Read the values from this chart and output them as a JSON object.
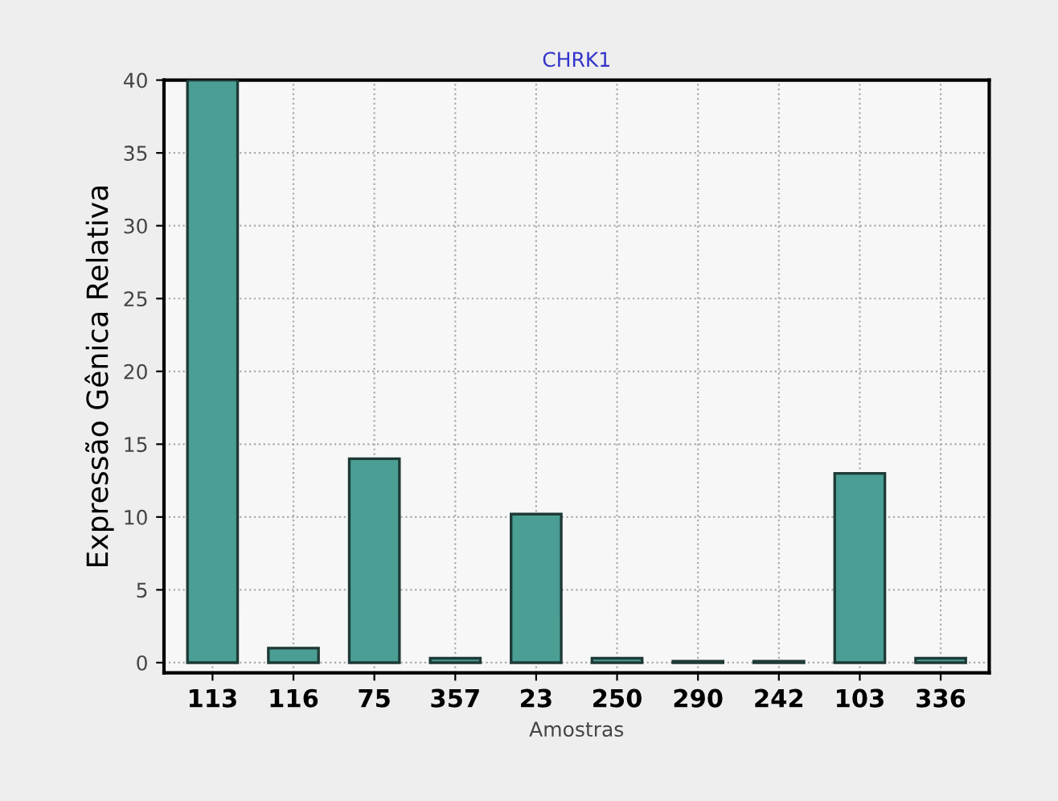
{
  "chart_data": {
    "type": "bar",
    "title": "CHRK1",
    "xlabel": "Amostras",
    "ylabel": "Expressão Gênica Relativa",
    "categories": [
      "113",
      "116",
      "75",
      "357",
      "23",
      "250",
      "290",
      "242",
      "103",
      "336"
    ],
    "values": [
      40,
      1.0,
      14,
      0.3,
      10.2,
      0.3,
      0.1,
      0.1,
      13,
      0.3
    ],
    "color": "#4a9e94",
    "ylim": [
      -0.7,
      40
    ],
    "yticks": [
      0,
      5,
      10,
      15,
      20,
      25,
      30,
      35,
      40
    ],
    "grid": true
  }
}
